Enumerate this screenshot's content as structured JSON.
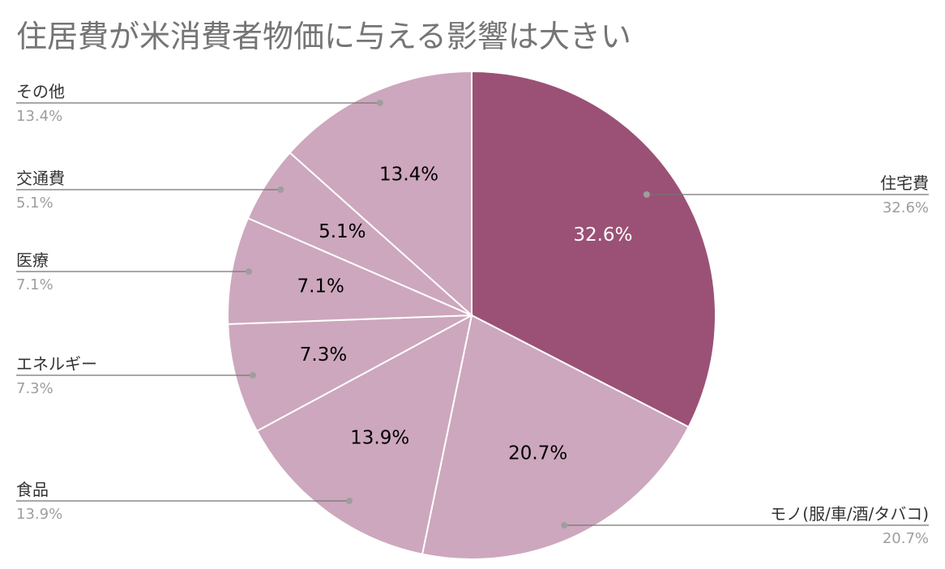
{
  "chart_data": {
    "type": "pie",
    "title": "住居費が米消費者物価に与える影響は大きい",
    "slices": [
      {
        "label": "住宅費",
        "value": 32.6,
        "display": "32.6%",
        "color": "#9b5175",
        "text_color": "#ffffff"
      },
      {
        "label": "モノ(服/車/酒/タバコ)",
        "value": 20.7,
        "display": "20.7%",
        "color": "#cda7bd",
        "text_color": "#000000"
      },
      {
        "label": "食品",
        "value": 13.9,
        "display": "13.9%",
        "color": "#cda7bd",
        "text_color": "#000000"
      },
      {
        "label": "エネルギー",
        "value": 7.3,
        "display": "7.3%",
        "color": "#cda7bd",
        "text_color": "#000000"
      },
      {
        "label": "医療",
        "value": 7.1,
        "display": "7.1%",
        "color": "#cda7bd",
        "text_color": "#000000"
      },
      {
        "label": "交通費",
        "value": 5.1,
        "display": "5.1%",
        "color": "#cda7bd",
        "text_color": "#000000"
      },
      {
        "label": "その他",
        "value": 13.4,
        "display": "13.4%",
        "color": "#cda7bd",
        "text_color": "#000000"
      }
    ],
    "start_angle_deg": 0,
    "direction": "clockwise",
    "legend": "callouts"
  }
}
